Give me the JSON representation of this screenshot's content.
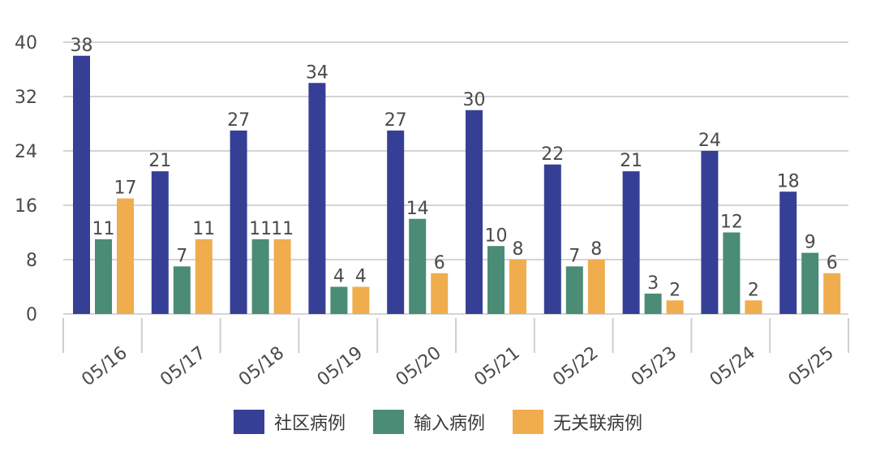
{
  "chart_data": {
    "type": "bar",
    "categories": [
      "05/16",
      "05/17",
      "05/18",
      "05/19",
      "05/20",
      "05/21",
      "05/22",
      "05/23",
      "05/24",
      "05/25"
    ],
    "series": [
      {
        "name": "社区病例",
        "color": "#363f96",
        "values": [
          38,
          21,
          27,
          34,
          27,
          30,
          22,
          21,
          24,
          18
        ]
      },
      {
        "name": "输入病例",
        "color": "#4a8c75",
        "values": [
          11,
          7,
          11,
          4,
          14,
          10,
          7,
          3,
          12,
          9
        ]
      },
      {
        "name": "无关联病例",
        "color": "#f0ad4e",
        "values": [
          17,
          11,
          11,
          4,
          6,
          8,
          8,
          2,
          2,
          6
        ]
      }
    ],
    "yticks": [
      0,
      8,
      16,
      24,
      32,
      40
    ],
    "ylim": [
      0,
      40
    ],
    "grid": true,
    "legend_position": "bottom-center",
    "title": "",
    "xlabel": "",
    "ylabel": ""
  }
}
